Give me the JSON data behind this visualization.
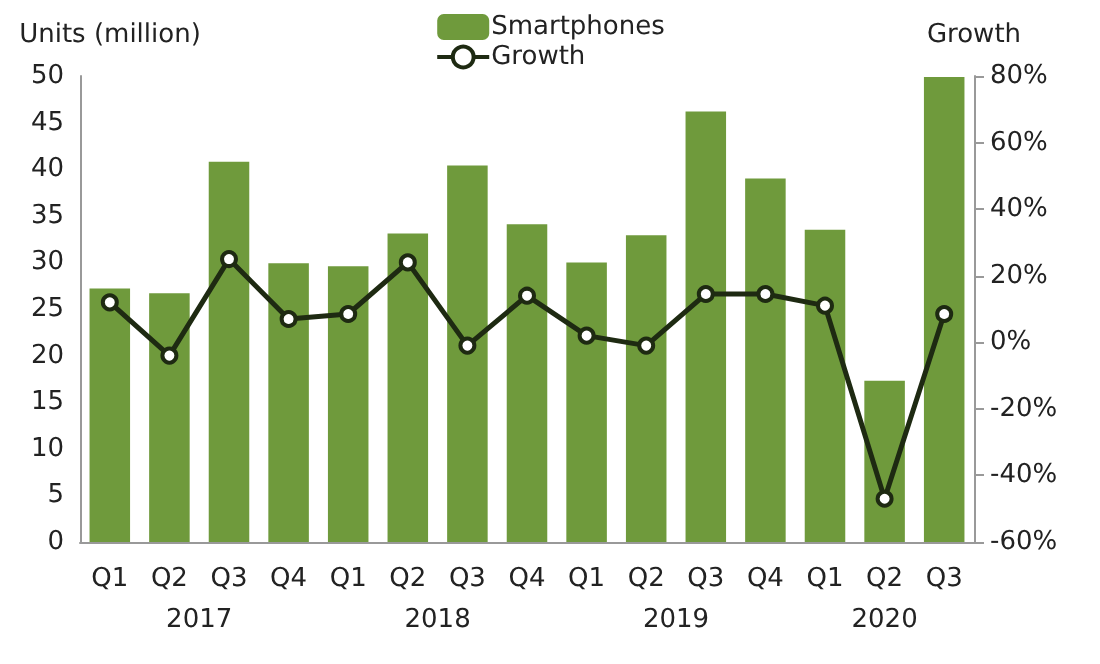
{
  "chart_data": {
    "type": "bar",
    "ylabel": "Units (million)",
    "y2label": "Growth",
    "categories": [
      "Q1",
      "Q2",
      "Q3",
      "Q4",
      "Q1",
      "Q2",
      "Q3",
      "Q4",
      "Q1",
      "Q2",
      "Q3",
      "Q4",
      "Q1",
      "Q2",
      "Q3"
    ],
    "series": [
      {
        "name": "Smartphones",
        "color": "#6f9a3c",
        "values": [
          27.2,
          26.7,
          40.8,
          29.9,
          29.6,
          33.1,
          40.4,
          34.1,
          30.0,
          32.9,
          46.2,
          39.0,
          33.5,
          17.3,
          49.9
        ]
      },
      {
        "name": "Growth",
        "type": "line",
        "axis": "y2",
        "color": "#1e2a12",
        "marker": "circle",
        "values": [
          12,
          -4,
          25,
          7,
          8.5,
          24,
          -1,
          14,
          2,
          -1,
          14.5,
          14.5,
          11,
          -47,
          8.5
        ]
      }
    ],
    "ylim": [
      0,
      50
    ],
    "yticks": [
      0,
      5,
      10,
      15,
      20,
      25,
      30,
      35,
      40,
      45,
      50
    ],
    "y2lim": [
      -60,
      80
    ],
    "y2ticks": [
      {
        "value": -60,
        "label": "-60%"
      },
      {
        "value": -40,
        "label": "-40%"
      },
      {
        "value": -20,
        "label": "-20%"
      },
      {
        "value": 0,
        "label": "0%"
      },
      {
        "value": 20,
        "label": "20%"
      },
      {
        "value": 40,
        "label": "40%"
      },
      {
        "value": 60,
        "label": "60%"
      },
      {
        "value": 80,
        "label": "80%"
      }
    ],
    "annotations": [
      "2017",
      "2018",
      "2019",
      "2020"
    ],
    "grid": false,
    "legend": "top"
  }
}
